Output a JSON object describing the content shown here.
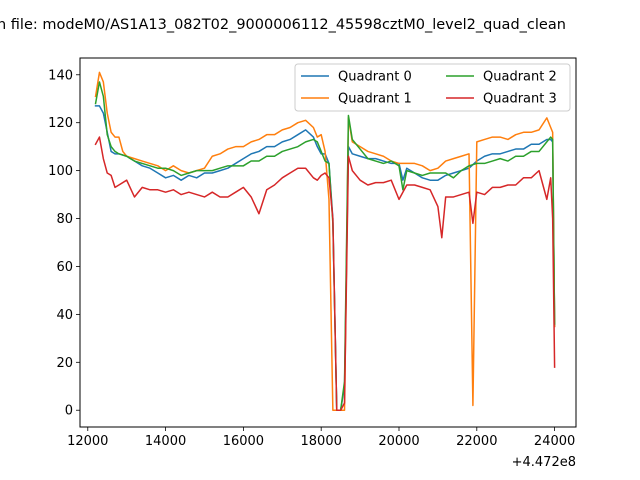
{
  "chart_data": {
    "type": "line",
    "title": "n file: modeM0/AS1A13_082T02_9000006112_45598cztM0_level2_quad_clean",
    "xlabel": "",
    "ylabel": "",
    "x_offset_label": "+4.472e8",
    "xlim": [
      11800,
      24550
    ],
    "ylim": [
      -7,
      147
    ],
    "xticks": [
      12000,
      14000,
      16000,
      18000,
      20000,
      22000,
      24000
    ],
    "xtick_labels": [
      "12000",
      "14000",
      "16000",
      "18000",
      "20000",
      "22000",
      "24000"
    ],
    "yticks": [
      0,
      20,
      40,
      60,
      80,
      100,
      120,
      140
    ],
    "ytick_labels": [
      "0",
      "20",
      "40",
      "60",
      "80",
      "100",
      "120",
      "140"
    ],
    "grid": false,
    "legend_position": "upper-right",
    "legend_columns": 2,
    "series": [
      {
        "name": "Quadrant 0",
        "color": "#1f77b4",
        "points": [
          [
            12200,
            127
          ],
          [
            12300,
            127
          ],
          [
            12400,
            124
          ],
          [
            12500,
            116
          ],
          [
            12600,
            108
          ],
          [
            12700,
            107
          ],
          [
            12800,
            107
          ],
          [
            13000,
            106
          ],
          [
            13200,
            104
          ],
          [
            13400,
            102
          ],
          [
            13600,
            101
          ],
          [
            13800,
            99
          ],
          [
            14000,
            97
          ],
          [
            14200,
            98
          ],
          [
            14400,
            96
          ],
          [
            14600,
            98
          ],
          [
            14800,
            97
          ],
          [
            15000,
            99
          ],
          [
            15200,
            99
          ],
          [
            15400,
            100
          ],
          [
            15600,
            101
          ],
          [
            15800,
            103
          ],
          [
            16000,
            105
          ],
          [
            16200,
            107
          ],
          [
            16400,
            108
          ],
          [
            16600,
            110
          ],
          [
            16800,
            110
          ],
          [
            17000,
            112
          ],
          [
            17200,
            113
          ],
          [
            17400,
            115
          ],
          [
            17600,
            117
          ],
          [
            17800,
            114
          ],
          [
            17900,
            110
          ],
          [
            18000,
            107
          ],
          [
            18100,
            107
          ],
          [
            18200,
            103
          ],
          [
            18300,
            80
          ],
          [
            18400,
            0
          ],
          [
            18500,
            0
          ],
          [
            18600,
            10
          ],
          [
            18700,
            110
          ],
          [
            18800,
            107
          ],
          [
            19000,
            106
          ],
          [
            19200,
            105
          ],
          [
            19400,
            105
          ],
          [
            19600,
            104
          ],
          [
            19800,
            103
          ],
          [
            20000,
            103
          ],
          [
            20100,
            96
          ],
          [
            20200,
            101
          ],
          [
            20400,
            99
          ],
          [
            20600,
            97
          ],
          [
            20800,
            96
          ],
          [
            21000,
            96
          ],
          [
            21200,
            98
          ],
          [
            21400,
            99
          ],
          [
            21600,
            100
          ],
          [
            21800,
            101
          ],
          [
            22000,
            104
          ],
          [
            22200,
            106
          ],
          [
            22400,
            107
          ],
          [
            22600,
            107
          ],
          [
            22800,
            108
          ],
          [
            23000,
            109
          ],
          [
            23200,
            109
          ],
          [
            23400,
            111
          ],
          [
            23600,
            111
          ],
          [
            23800,
            113
          ],
          [
            23900,
            113
          ],
          [
            23950,
            112
          ],
          [
            24000,
            35
          ]
        ]
      },
      {
        "name": "Quadrant 1",
        "color": "#ff7f0e",
        "points": [
          [
            12200,
            131
          ],
          [
            12300,
            141
          ],
          [
            12400,
            137
          ],
          [
            12500,
            124
          ],
          [
            12600,
            116
          ],
          [
            12700,
            114
          ],
          [
            12800,
            114
          ],
          [
            12900,
            108
          ],
          [
            13000,
            106
          ],
          [
            13200,
            105
          ],
          [
            13400,
            104
          ],
          [
            13600,
            103
          ],
          [
            13800,
            102
          ],
          [
            14000,
            100
          ],
          [
            14200,
            102
          ],
          [
            14400,
            100
          ],
          [
            14600,
            99
          ],
          [
            14800,
            100
          ],
          [
            15000,
            101
          ],
          [
            15200,
            106
          ],
          [
            15400,
            107
          ],
          [
            15600,
            109
          ],
          [
            15800,
            110
          ],
          [
            16000,
            110
          ],
          [
            16200,
            112
          ],
          [
            16400,
            113
          ],
          [
            16600,
            115
          ],
          [
            16800,
            115
          ],
          [
            17000,
            117
          ],
          [
            17200,
            118
          ],
          [
            17400,
            120
          ],
          [
            17600,
            121
          ],
          [
            17800,
            118
          ],
          [
            17900,
            114
          ],
          [
            18000,
            115
          ],
          [
            18100,
            108
          ],
          [
            18200,
            88
          ],
          [
            18300,
            0
          ],
          [
            18400,
            0
          ],
          [
            18500,
            0
          ],
          [
            18600,
            0
          ],
          [
            18700,
            122
          ],
          [
            18800,
            112
          ],
          [
            19000,
            110
          ],
          [
            19200,
            108
          ],
          [
            19400,
            107
          ],
          [
            19600,
            106
          ],
          [
            19800,
            104
          ],
          [
            20000,
            103
          ],
          [
            20200,
            103
          ],
          [
            20400,
            103
          ],
          [
            20600,
            102
          ],
          [
            20800,
            100
          ],
          [
            21000,
            101
          ],
          [
            21200,
            104
          ],
          [
            21400,
            105
          ],
          [
            21600,
            106
          ],
          [
            21800,
            107
          ],
          [
            21900,
            2
          ],
          [
            22000,
            112
          ],
          [
            22200,
            113
          ],
          [
            22400,
            114
          ],
          [
            22600,
            114
          ],
          [
            22800,
            113
          ],
          [
            23000,
            115
          ],
          [
            23200,
            116
          ],
          [
            23400,
            116
          ],
          [
            23600,
            117
          ],
          [
            23800,
            122
          ],
          [
            23900,
            118
          ],
          [
            23950,
            116
          ],
          [
            24000,
            35
          ]
        ]
      },
      {
        "name": "Quadrant 2",
        "color": "#2ca02c",
        "points": [
          [
            12200,
            128
          ],
          [
            12300,
            137
          ],
          [
            12400,
            131
          ],
          [
            12500,
            115
          ],
          [
            12600,
            110
          ],
          [
            12700,
            108
          ],
          [
            12800,
            107
          ],
          [
            13000,
            106
          ],
          [
            13200,
            104
          ],
          [
            13400,
            103
          ],
          [
            13600,
            102
          ],
          [
            13800,
            101
          ],
          [
            14000,
            101
          ],
          [
            14200,
            100
          ],
          [
            14400,
            98
          ],
          [
            14600,
            99
          ],
          [
            14800,
            100
          ],
          [
            15000,
            100
          ],
          [
            15200,
            100
          ],
          [
            15400,
            101
          ],
          [
            15600,
            102
          ],
          [
            15800,
            102
          ],
          [
            16000,
            102
          ],
          [
            16200,
            104
          ],
          [
            16400,
            104
          ],
          [
            16600,
            106
          ],
          [
            16800,
            106
          ],
          [
            17000,
            108
          ],
          [
            17200,
            109
          ],
          [
            17400,
            110
          ],
          [
            17600,
            112
          ],
          [
            17800,
            113
          ],
          [
            17900,
            112
          ],
          [
            18000,
            108
          ],
          [
            18100,
            104
          ],
          [
            18200,
            103
          ],
          [
            18300,
            78
          ],
          [
            18400,
            0
          ],
          [
            18500,
            0
          ],
          [
            18600,
            12
          ],
          [
            18700,
            123
          ],
          [
            18800,
            113
          ],
          [
            19000,
            109
          ],
          [
            19200,
            105
          ],
          [
            19400,
            104
          ],
          [
            19600,
            103
          ],
          [
            19800,
            104
          ],
          [
            20000,
            102
          ],
          [
            20100,
            92
          ],
          [
            20200,
            100
          ],
          [
            20400,
            99
          ],
          [
            20600,
            98
          ],
          [
            20800,
            99
          ],
          [
            21000,
            99
          ],
          [
            21200,
            99
          ],
          [
            21400,
            97
          ],
          [
            21600,
            100
          ],
          [
            21800,
            102
          ],
          [
            22000,
            103
          ],
          [
            22200,
            103
          ],
          [
            22400,
            104
          ],
          [
            22600,
            105
          ],
          [
            22800,
            104
          ],
          [
            23000,
            106
          ],
          [
            23200,
            106
          ],
          [
            23400,
            108
          ],
          [
            23600,
            108
          ],
          [
            23800,
            112
          ],
          [
            23900,
            114
          ],
          [
            23950,
            113
          ],
          [
            24000,
            36
          ]
        ]
      },
      {
        "name": "Quadrant 3",
        "color": "#d62728",
        "points": [
          [
            12200,
            111
          ],
          [
            12300,
            114
          ],
          [
            12400,
            105
          ],
          [
            12500,
            99
          ],
          [
            12600,
            98
          ],
          [
            12700,
            93
          ],
          [
            12800,
            94
          ],
          [
            13000,
            96
          ],
          [
            13200,
            89
          ],
          [
            13400,
            93
          ],
          [
            13600,
            92
          ],
          [
            13800,
            92
          ],
          [
            14000,
            91
          ],
          [
            14200,
            92
          ],
          [
            14400,
            90
          ],
          [
            14600,
            91
          ],
          [
            14800,
            90
          ],
          [
            15000,
            89
          ],
          [
            15200,
            91
          ],
          [
            15400,
            89
          ],
          [
            15600,
            89
          ],
          [
            15800,
            91
          ],
          [
            16000,
            93
          ],
          [
            16200,
            89
          ],
          [
            16400,
            82
          ],
          [
            16600,
            92
          ],
          [
            16800,
            94
          ],
          [
            17000,
            97
          ],
          [
            17200,
            99
          ],
          [
            17400,
            101
          ],
          [
            17600,
            101
          ],
          [
            17800,
            97
          ],
          [
            17900,
            96
          ],
          [
            18000,
            98
          ],
          [
            18100,
            99
          ],
          [
            18200,
            97
          ],
          [
            18300,
            80
          ],
          [
            18400,
            0
          ],
          [
            18500,
            0
          ],
          [
            18600,
            3
          ],
          [
            18700,
            106
          ],
          [
            18800,
            100
          ],
          [
            19000,
            96
          ],
          [
            19200,
            94
          ],
          [
            19400,
            95
          ],
          [
            19600,
            95
          ],
          [
            19800,
            96
          ],
          [
            20000,
            88
          ],
          [
            20200,
            94
          ],
          [
            20400,
            94
          ],
          [
            20600,
            93
          ],
          [
            20800,
            92
          ],
          [
            21000,
            85
          ],
          [
            21100,
            72
          ],
          [
            21200,
            89
          ],
          [
            21400,
            89
          ],
          [
            21600,
            90
          ],
          [
            21800,
            91
          ],
          [
            21900,
            78
          ],
          [
            22000,
            91
          ],
          [
            22200,
            90
          ],
          [
            22400,
            93
          ],
          [
            22600,
            93
          ],
          [
            22800,
            94
          ],
          [
            23000,
            94
          ],
          [
            23200,
            97
          ],
          [
            23400,
            97
          ],
          [
            23600,
            100
          ],
          [
            23800,
            88
          ],
          [
            23900,
            97
          ],
          [
            23950,
            80
          ],
          [
            24000,
            18
          ]
        ]
      }
    ]
  }
}
